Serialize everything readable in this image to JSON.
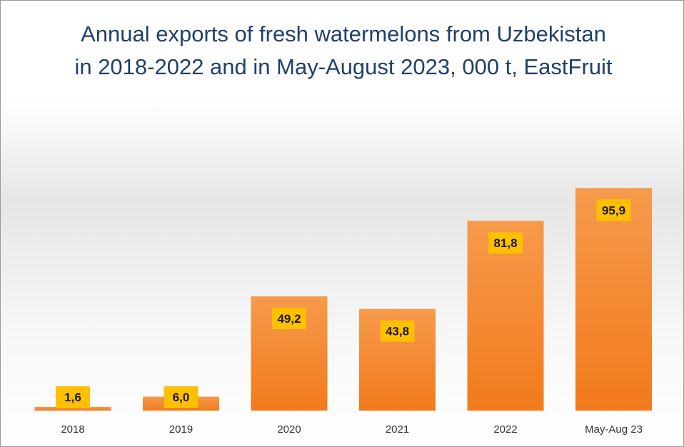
{
  "chart_data": {
    "type": "bar",
    "title": "Annual exports of fresh watermelons from Uzbekistan in 2018-2022 and in May-August 2023, 000 t, EastFruit",
    "categories": [
      "2018",
      "2019",
      "2020",
      "2021",
      "2022",
      "May-Aug 23"
    ],
    "values": [
      1.6,
      6.0,
      49.2,
      43.8,
      81.8,
      95.9
    ],
    "value_labels": [
      "1,6",
      "6,0",
      "49,2",
      "43,8",
      "81,8",
      "95,9"
    ],
    "xlabel": "",
    "ylabel": "",
    "ylim": [
      0,
      100
    ],
    "grid": false,
    "legend": "none",
    "colors": {
      "bar_top": "#f69a4c",
      "bar_bottom": "#f27a1c",
      "label_box": "#ffc000",
      "title": "#1f3f6e"
    }
  }
}
